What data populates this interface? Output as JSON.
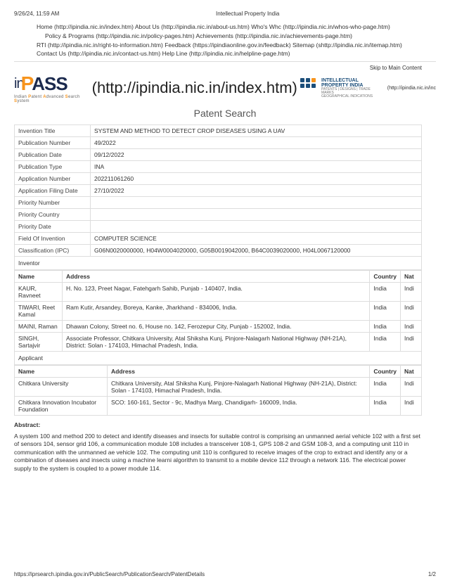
{
  "header": {
    "datetime": "9/26/24, 11:59 AM",
    "title": "Intellectual Property India"
  },
  "nav": {
    "line1": "Home (http://ipindia.nic.in/index.htm)    About Us (http://ipindia.nic.in/about-us.htm)    Who's Whc (http://ipindia.nic.in/whos-who-page.htm)",
    "line2": "Policy & Programs (http://ipindia.nic.in/policy-pages.htm)    Achievements (http://ipindia.nic.in/achievements-page.htm)",
    "line3": "RTI (http://ipindia.nic.in/right-to-information.htm)    Feedback (https://ipindiaonline.gov.in/feedback)    Sitemap (shttp://ipindia.nic.in/itemap.htm)",
    "line4": "Contact Us (http://ipindia.nic.in/contact-us.htm)    Help Line (http://ipindia.nic.in/helpline-page.htm)"
  },
  "skip": "Skip to Main Content",
  "logo": {
    "pre": "in",
    "mid": "P",
    "post": "ASS",
    "sub_prefix": "Indian ",
    "sub_p": "P",
    "sub_mid": "atent ",
    "sub_a": "A",
    "sub_mid2": "dvanced ",
    "sub_s": "S",
    "sub_mid3": "earch ",
    "sub_s2": "S",
    "sub_end": "ystem"
  },
  "url_big": "(http://ipindia.nic.in/index.htm)",
  "ipi": {
    "l1": "INTELLECTUAL",
    "l2": "PROPERTY INDIA",
    "l3": "PATENTS | DESIGNS | TRADE MARKS",
    "l4": "GEOGRAPHICAL INDICATIONS",
    "ext": "(http://ipindia.nic.in/inc"
  },
  "search_title": "Patent Search",
  "fields": [
    {
      "k": "Invention Title",
      "v": "SYSTEM AND METHOD TO DETECT CROP DISEASES USING A UAV"
    },
    {
      "k": "Publication Number",
      "v": "49/2022"
    },
    {
      "k": "Publication Date",
      "v": "09/12/2022"
    },
    {
      "k": "Publication Type",
      "v": "INA"
    },
    {
      "k": "Application Number",
      "v": "202211061260"
    },
    {
      "k": "Application Filing Date",
      "v": "27/10/2022"
    },
    {
      "k": "Priority Number",
      "v": ""
    },
    {
      "k": "Priority Country",
      "v": ""
    },
    {
      "k": "Priority Date",
      "v": ""
    },
    {
      "k": "Field Of Invention",
      "v": "COMPUTER SCIENCE"
    },
    {
      "k": "Classification (IPC)",
      "v": "G06N0020000000, H04W0004020000, G05B0019042000, B64C0039020000, H04L0067120000"
    }
  ],
  "inventor_label": "Inventor",
  "inv_head": {
    "name": "Name",
    "addr": "Address",
    "country": "Country",
    "nat": "Nat"
  },
  "inventors": [
    {
      "name": "KAUR, Ravneet",
      "addr": "H. No. 123, Preet Nagar, Fatehgarh Sahib, Punjab - 140407, India.",
      "country": "India",
      "nat": "Indi"
    },
    {
      "name": "TIWARI, Reet Kamal",
      "addr": "Ram Kutir, Arsandey, Boreya, Kanke, Jharkhand - 834006, India.",
      "country": "India",
      "nat": "Indi"
    },
    {
      "name": "MAINI, Raman",
      "addr": "Dhawan Colony, Street no. 6, House no. 142, Ferozepur City, Punjab - 152002, India.",
      "country": "India",
      "nat": "Indi"
    },
    {
      "name": "SINGH, Sartajvir",
      "addr": "Associate Professor, Chitkara University, Atal Shiksha Kunj, Pinjore-Nalagarh National Highway (NH-21A), District: Solan - 174103, Himachal Pradesh, India.",
      "country": "India",
      "nat": "Indi"
    }
  ],
  "applicant_label": "Applicant",
  "app_head": {
    "name": "Name",
    "addr": "Address",
    "country": "Country",
    "nat": "Nat"
  },
  "applicants": [
    {
      "name": "Chitkara University",
      "addr": "Chitkara University, Atal Shiksha Kunj, Pinjore-Nalagarh National Highway (NH-21A), District: Solan - 174103, Himachal Pradesh, India.",
      "country": "India",
      "nat": "Indi"
    },
    {
      "name": "Chitkara Innovation Incubator Foundation",
      "addr": "SCO: 160-161, Sector - 9c, Madhya Marg, Chandigarh- 160009, India.",
      "country": "India",
      "nat": "Indi"
    }
  ],
  "abstract_head": "Abstract:",
  "abstract": "A system 100 and method 200 to detect and identify diseases and insects for suitable control is comprising an unmanned aerial vehicle 102 with a first set of sensors 104, sensor grid 106, a communication module 108 includes a transceiver 108-1, GPS 108-2 and GSM 108-3, and a computing unit 110 in communication with the unmanned ae vehicle 102. The computing unit 110 is configured to receive images of the crop to extract and identify any or a combination of diseases and insects using a machine learni algorithm to transmit to a mobile device 112 through a network 116. The electrical power supply to the system is coupled to a power module 114.",
  "footer": {
    "url": "https://iprsearch.ipindia.gov.in/PublicSearch/PublicationSearch/PatentDetails",
    "page": "1/2"
  }
}
